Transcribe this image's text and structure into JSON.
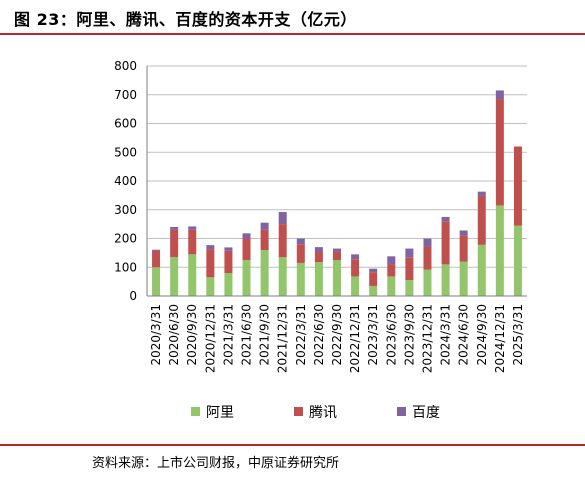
{
  "figure_title": "图 23：阿里、腾讯、百度的资本开支（亿元）",
  "source_note": "资料来源：上市公司财报，中原证券研究所",
  "colors": {
    "accent_rule": "#b3272d",
    "alibaba": "#93c56b",
    "tencent": "#c0504d",
    "baidu": "#8064a2"
  },
  "chart_data": {
    "type": "bar",
    "stacked": true,
    "title": "",
    "xlabel": "",
    "ylabel": "",
    "ylim": [
      0,
      800
    ],
    "yticks": [
      0,
      100,
      200,
      300,
      400,
      500,
      600,
      700,
      800
    ],
    "grid": true,
    "legend": "bottom",
    "categories": [
      "2020/3/31",
      "2020/6/30",
      "2020/9/30",
      "2020/12/31",
      "2021/3/31",
      "2021/6/30",
      "2021/9/30",
      "2021/12/31",
      "2022/3/31",
      "2022/6/30",
      "2022/9/30",
      "2022/12/31",
      "2023/3/31",
      "2023/6/30",
      "2023/9/30",
      "2023/12/31",
      "2024/3/31",
      "2024/6/30",
      "2024/9/30",
      "2024/12/31",
      "2025/3/31"
    ],
    "series": [
      {
        "name": "阿里",
        "values": [
          100,
          135,
          145,
          65,
          80,
          125,
          160,
          135,
          115,
          118,
          125,
          68,
          35,
          68,
          55,
          92,
          110,
          120,
          178,
          315,
          245
        ]
      },
      {
        "name": "腾讯",
        "values": [
          58,
          95,
          85,
          97,
          77,
          75,
          70,
          115,
          65,
          35,
          30,
          60,
          48,
          43,
          78,
          80,
          150,
          90,
          170,
          370,
          275
        ]
      },
      {
        "name": "百度",
        "values": [
          3,
          10,
          12,
          15,
          12,
          18,
          25,
          42,
          20,
          17,
          10,
          17,
          12,
          27,
          32,
          28,
          15,
          18,
          15,
          30,
          0
        ]
      }
    ]
  }
}
